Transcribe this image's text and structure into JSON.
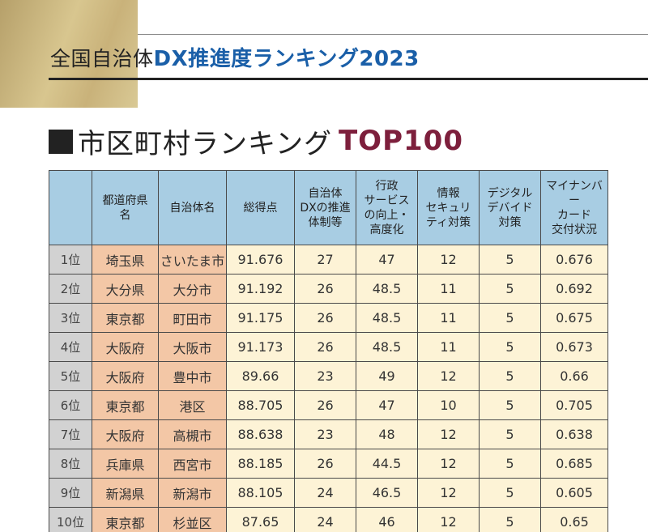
{
  "header": {
    "title_main": "全国自治体 ",
    "title_accent": "DX推進度ランキング2023"
  },
  "section": {
    "title_main": "市区町村ランキング",
    "title_accent": "TOP100"
  },
  "table": {
    "columns": [
      {
        "lines": [
          ""
        ]
      },
      {
        "lines": [
          "都道府県",
          "名"
        ]
      },
      {
        "lines": [
          "自治体名"
        ]
      },
      {
        "lines": [
          "総得点"
        ]
      },
      {
        "lines": [
          "自治体",
          "DXの推進",
          "体制等"
        ]
      },
      {
        "lines": [
          "行政",
          "サービス",
          "の向上・",
          "高度化"
        ]
      },
      {
        "lines": [
          "情報",
          "セキュリ",
          "ティ対策"
        ]
      },
      {
        "lines": [
          "デジタル",
          "デバイド",
          "対策"
        ]
      },
      {
        "lines": [
          "マイナンバー",
          "カード",
          "交付状況"
        ]
      }
    ],
    "rows": [
      {
        "rank": "1位",
        "prefecture": "埼玉県",
        "municipality": "さいたま市",
        "total": "91.676",
        "dx_system": "27",
        "service": "47",
        "security": "12",
        "divide": "5",
        "mynumber": "0.676"
      },
      {
        "rank": "2位",
        "prefecture": "大分県",
        "municipality": "大分市",
        "total": "91.192",
        "dx_system": "26",
        "service": "48.5",
        "security": "11",
        "divide": "5",
        "mynumber": "0.692"
      },
      {
        "rank": "3位",
        "prefecture": "東京都",
        "municipality": "町田市",
        "total": "91.175",
        "dx_system": "26",
        "service": "48.5",
        "security": "11",
        "divide": "5",
        "mynumber": "0.675"
      },
      {
        "rank": "4位",
        "prefecture": "大阪府",
        "municipality": "大阪市",
        "total": "91.173",
        "dx_system": "26",
        "service": "48.5",
        "security": "11",
        "divide": "5",
        "mynumber": "0.673"
      },
      {
        "rank": "5位",
        "prefecture": "大阪府",
        "municipality": "豊中市",
        "total": "89.66",
        "dx_system": "23",
        "service": "49",
        "security": "12",
        "divide": "5",
        "mynumber": "0.66"
      },
      {
        "rank": "6位",
        "prefecture": "東京都",
        "municipality": "港区",
        "total": "88.705",
        "dx_system": "26",
        "service": "47",
        "security": "10",
        "divide": "5",
        "mynumber": "0.705"
      },
      {
        "rank": "7位",
        "prefecture": "大阪府",
        "municipality": "高槻市",
        "total": "88.638",
        "dx_system": "23",
        "service": "48",
        "security": "12",
        "divide": "5",
        "mynumber": "0.638"
      },
      {
        "rank": "8位",
        "prefecture": "兵庫県",
        "municipality": "西宮市",
        "total": "88.185",
        "dx_system": "26",
        "service": "44.5",
        "security": "12",
        "divide": "5",
        "mynumber": "0.685"
      },
      {
        "rank": "9位",
        "prefecture": "新潟県",
        "municipality": "新潟市",
        "total": "88.105",
        "dx_system": "24",
        "service": "46.5",
        "security": "12",
        "divide": "5",
        "mynumber": "0.605"
      },
      {
        "rank": "10位",
        "prefecture": "東京都",
        "municipality": "杉並区",
        "total": "87.65",
        "dx_system": "24",
        "service": "46",
        "security": "12",
        "divide": "5",
        "mynumber": "0.65"
      }
    ]
  },
  "colors": {
    "header_accent": "#1a5fa8",
    "section_accent": "#7d1f3c",
    "table_header_bg": "#a8cde3",
    "rank_bg": "#d2d2d2",
    "name_bg": "#f3c7a6",
    "data_bg": "#fdf3d6",
    "gold_block": "#c9b27a"
  }
}
